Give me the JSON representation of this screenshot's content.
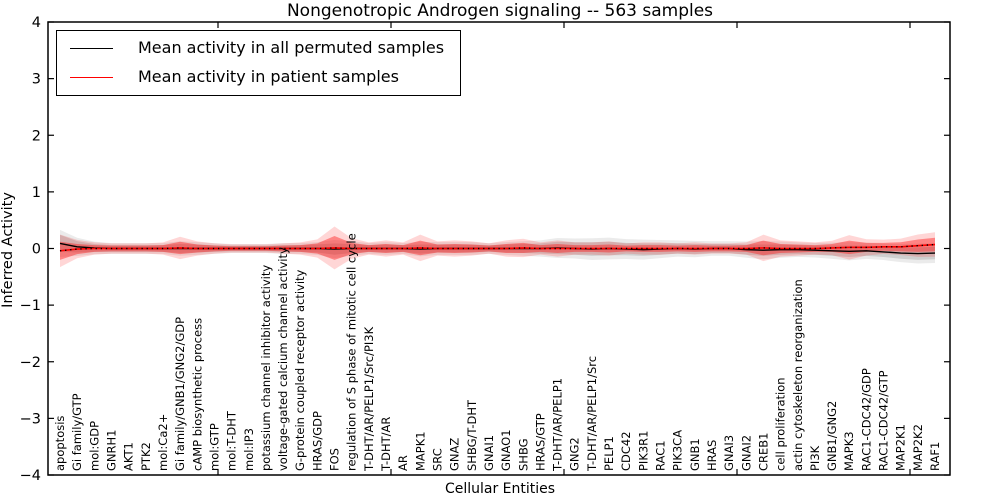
{
  "figure": {
    "title": "Nongenotropic Androgen signaling -- 563 samples",
    "xlabel": "Cellular Entities",
    "ylabel": "Inferred Activity"
  },
  "legend": {
    "position": "upper left",
    "items": [
      {
        "label": "Mean activity in all permuted samples",
        "color": "#000000",
        "swatch": "line"
      },
      {
        "label": "Mean activity in patient samples",
        "color": "#ff0000",
        "swatch": "line"
      }
    ]
  },
  "chart_data": {
    "type": "line",
    "title": "Nongenotropic Androgen signaling -- 563 samples",
    "xlabel": "Cellular Entities",
    "ylabel": "Inferred Activity",
    "ylim": [
      -4,
      4
    ],
    "yticks": [
      -4,
      -3,
      -2,
      -1,
      0,
      1,
      2,
      3,
      4
    ],
    "grid": false,
    "legend_position": "upper left",
    "x_tick_label_rotation": 90,
    "categories": [
      "apoptosis",
      "Gi family/GTP",
      "mol:GDP",
      "GNRH1",
      "AKT1",
      "PTK2",
      "mol:Ca2+",
      "Gi family/GNB1/GNG2/GDP",
      "cAMP biosynthetic process",
      "mol:GTP",
      "mol:T-DHT",
      "mol:IP3",
      "potassium channel inhibitor activity",
      "voltage-gated calcium channel activity",
      "G-protein coupled receptor activity",
      "HRAS/GDP",
      "FOS",
      "regulation of S phase of mitotic cell cycle",
      "T-DHT/AR/PELP1/Src/PI3K",
      "T-DHT/AR",
      "AR",
      "MAPK1",
      "SRC",
      "GNAZ",
      "SHBG/T-DHT",
      "GNAI1",
      "GNAO1",
      "SHBG",
      "HRAS/GTP",
      "T-DHT/AR/PELP1",
      "GNG2",
      "T-DHT/AR/PELP1/Src",
      "PELP1",
      "CDC42",
      "PIK3R1",
      "RAC1",
      "PIK3CA",
      "GNB1",
      "HRAS",
      "GNAI3",
      "GNAI2",
      "CREB1",
      "cell proliferation",
      "actin cytoskeleton reorganization",
      "PI3K",
      "GNB1/GNG2",
      "MAPK3",
      "RAC1-CDC42/GDP",
      "RAC1-CDC42/GTP",
      "MAP2K1",
      "MAP2K2",
      "RAF1"
    ],
    "series": [
      {
        "name": "Mean activity in all permuted samples",
        "color": "#000000",
        "band_color": "#808080",
        "values": [
          0.09,
          0.03,
          0.01,
          0,
          0,
          0,
          0,
          0,
          0,
          0,
          0,
          0,
          0,
          0,
          0,
          0,
          -0.01,
          0,
          0,
          0,
          0,
          -0.01,
          0,
          0,
          0,
          0,
          0,
          0,
          0,
          0.01,
          0,
          -0.01,
          0,
          -0.01,
          -0.02,
          -0.01,
          0,
          -0.01,
          0,
          0,
          -0.02,
          -0.03,
          -0.02,
          -0.02,
          -0.03,
          -0.04,
          -0.05,
          -0.04,
          -0.06,
          -0.08,
          -0.09,
          -0.08
        ],
        "band": [
          0.15,
          0.1,
          0.07,
          0.06,
          0.06,
          0.06,
          0.06,
          0.08,
          0.07,
          0.06,
          0.05,
          0.05,
          0.05,
          0.06,
          0.06,
          0.07,
          0.1,
          0.08,
          0.06,
          0.07,
          0.06,
          0.08,
          0.07,
          0.07,
          0.07,
          0.06,
          0.07,
          0.08,
          0.09,
          0.11,
          0.11,
          0.12,
          0.12,
          0.11,
          0.11,
          0.1,
          0.09,
          0.09,
          0.08,
          0.08,
          0.09,
          0.1,
          0.09,
          0.08,
          0.08,
          0.09,
          0.1,
          0.09,
          0.09,
          0.1,
          0.11,
          0.11
        ]
      },
      {
        "name": "Mean activity in patient samples",
        "color": "#ff0000",
        "band_color": "#ff0000",
        "values": [
          -0.04,
          -0.01,
          0,
          0,
          0,
          0,
          0,
          0.01,
          0,
          0,
          0,
          0,
          0,
          0,
          0,
          0,
          0.01,
          0,
          0,
          0,
          0,
          0.01,
          0,
          0,
          0,
          0,
          0,
          0.01,
          0,
          0,
          0,
          0,
          0,
          0,
          0,
          0,
          0,
          0,
          0,
          0,
          0,
          0.01,
          0,
          0,
          0,
          0.01,
          0.02,
          0.02,
          0.03,
          0.03,
          0.05,
          0.07
        ],
        "band": [
          0.16,
          0.09,
          0.06,
          0.05,
          0.05,
          0.05,
          0.06,
          0.11,
          0.07,
          0.05,
          0.04,
          0.04,
          0.04,
          0.05,
          0.06,
          0.09,
          0.21,
          0.1,
          0.06,
          0.08,
          0.06,
          0.13,
          0.07,
          0.08,
          0.07,
          0.05,
          0.08,
          0.09,
          0.06,
          0.08,
          0.06,
          0.06,
          0.07,
          0.05,
          0.06,
          0.06,
          0.05,
          0.06,
          0.05,
          0.05,
          0.06,
          0.13,
          0.08,
          0.07,
          0.06,
          0.07,
          0.12,
          0.08,
          0.07,
          0.08,
          0.11,
          0.12
        ]
      }
    ]
  }
}
